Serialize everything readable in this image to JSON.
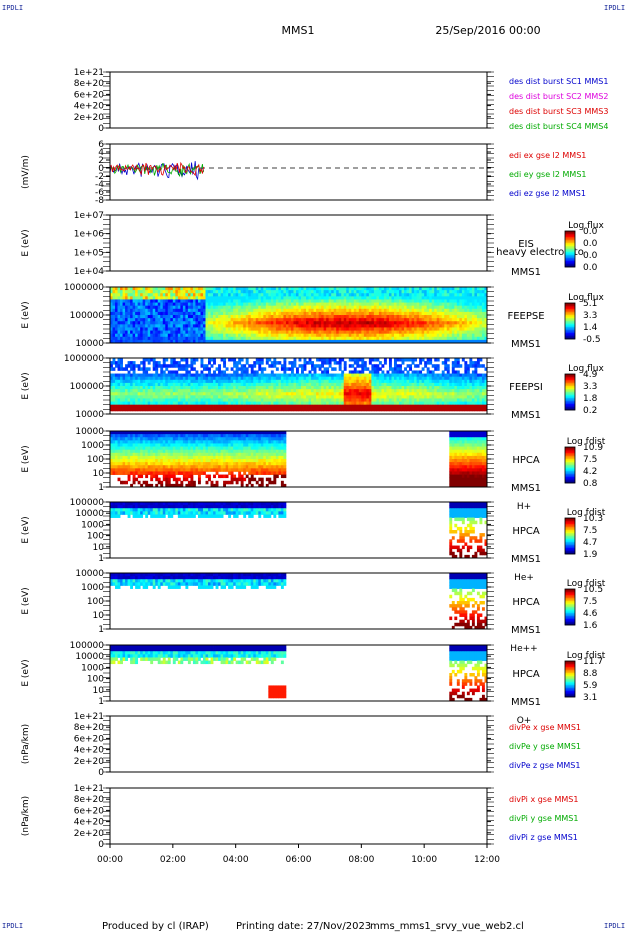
{
  "header": {
    "corner_tl": "IPDLI",
    "corner_tr": "IPDLI",
    "corner_bl": "IPDLI",
    "corner_br": "IPDLI",
    "spacecraft": "MMS1",
    "datetime": "25/Sep/2016 00:00"
  },
  "footer": {
    "produced_by": "Produced by cl (IRAP)",
    "printing_date": "Printing date: 27/Nov/2023",
    "filename": "mms_mms1_srvy_vue_web2.cl"
  },
  "chart_data": {
    "type": "heatmap",
    "x_axis": {
      "ticks": [
        "00:00",
        "02:00",
        "04:00",
        "06:00",
        "08:00",
        "10:00",
        "12:00"
      ],
      "range_hours": [
        0,
        12
      ]
    },
    "panels": [
      {
        "id": "des-dist",
        "kind": "line",
        "ylabel": "",
        "yticks": [
          "1e+21",
          "8e+20",
          "6e+20",
          "4e+20",
          "2e+20",
          "0"
        ],
        "zero_dashed": true,
        "legend": [
          {
            "text": "des dist burst SC1 MMS1",
            "color": "#0000cc"
          },
          {
            "text": "des dist burst SC2 MMS2",
            "color": "#dd00dd"
          },
          {
            "text": "des dist burst SC3 MMS3",
            "color": "#dd0000"
          },
          {
            "text": "des dist burst SC4 MMS4",
            "color": "#00aa00"
          }
        ]
      },
      {
        "id": "edi",
        "kind": "line",
        "ylabel": "(mV/m)",
        "yticks": [
          "6",
          "4",
          "2",
          "0",
          "-2",
          "-4",
          "-6",
          "-8"
        ],
        "zero_dashed": true,
        "data_end_hour": 3.0,
        "legend": [
          {
            "text": "edi ex gse l2 MMS1",
            "color": "#dd0000"
          },
          {
            "text": "edi ey gse l2 MMS1",
            "color": "#00aa00"
          },
          {
            "text": "edi ez gse l2 MMS1",
            "color": "#0000cc"
          }
        ]
      },
      {
        "id": "eis",
        "kind": "spectrogram",
        "ylabel": "E (eV)",
        "yticks": [
          "1e+07",
          "1e+06",
          "1e+05",
          "1e+04"
        ],
        "instrument": "EIS",
        "subtitle": "heavy electron to",
        "sc": "MMS1",
        "species": "",
        "colorbar": {
          "title": "Log flux",
          "ticks": [
            "0.0",
            "0.0",
            "0.0",
            "0.0"
          ]
        },
        "segments": []
      },
      {
        "id": "feeps-e",
        "kind": "spectrogram",
        "ylabel": "E (eV)",
        "yticks": [
          "1000000",
          "100000",
          "10000"
        ],
        "instrument": "FEEPSE",
        "subtitle": "",
        "sc": "MMS1",
        "species": "",
        "colorbar": {
          "title": "Log flux",
          "ticks": [
            "5.1",
            "3.3",
            "1.4",
            "-0.5"
          ]
        },
        "segments": [
          {
            "start": 0.0,
            "end": 3.1,
            "profile": "feepse_early"
          },
          {
            "start": 3.1,
            "end": 12.0,
            "profile": "feepse_main"
          }
        ]
      },
      {
        "id": "feeps-i",
        "kind": "spectrogram",
        "ylabel": "E (eV)",
        "yticks": [
          "1000000",
          "100000",
          "10000"
        ],
        "instrument": "FEEPSI",
        "subtitle": "",
        "sc": "MMS1",
        "species": "",
        "colorbar": {
          "title": "Log flux",
          "ticks": [
            "4.9",
            "3.3",
            "1.8",
            "0.2"
          ]
        },
        "segments": [
          {
            "start": 0.0,
            "end": 12.0,
            "profile": "feepsi"
          }
        ]
      },
      {
        "id": "hpca-h",
        "kind": "spectrogram",
        "ylabel": "E (eV)",
        "yticks": [
          "10000",
          "1000",
          "100",
          "10",
          "1"
        ],
        "instrument": "HPCA",
        "subtitle": "",
        "sc": "MMS1",
        "species": "H+",
        "colorbar": {
          "title": "Log fdist",
          "ticks": [
            "10.9",
            "7.5",
            "4.2",
            "0.8"
          ]
        },
        "segments": [
          {
            "start": 0.0,
            "end": 5.6,
            "profile": "hpca_h"
          },
          {
            "start": 10.8,
            "end": 12.0,
            "profile": "hpca_h_late"
          }
        ]
      },
      {
        "id": "hpca-he",
        "kind": "spectrogram",
        "ylabel": "E (eV)",
        "yticks": [
          "100000",
          "10000",
          "1000",
          "100",
          "10",
          "1"
        ],
        "instrument": "HPCA",
        "subtitle": "",
        "sc": "MMS1",
        "species": "He+",
        "colorbar": {
          "title": "Log fdist",
          "ticks": [
            "10.3",
            "7.5",
            "4.7",
            "1.9"
          ]
        },
        "segments": [
          {
            "start": 0.0,
            "end": 5.6,
            "profile": "hpca_top"
          },
          {
            "start": 10.8,
            "end": 12.0,
            "profile": "hpca_late"
          }
        ]
      },
      {
        "id": "hpca-hepp",
        "kind": "spectrogram",
        "ylabel": "E (eV)",
        "yticks": [
          "10000",
          "1000",
          "100",
          "10",
          "1"
        ],
        "instrument": "HPCA",
        "subtitle": "",
        "sc": "MMS1",
        "species": "He++",
        "colorbar": {
          "title": "Log fdist",
          "ticks": [
            "10.5",
            "7.5",
            "4.6",
            "1.6"
          ]
        },
        "segments": [
          {
            "start": 0.0,
            "end": 5.6,
            "profile": "hpca_top"
          },
          {
            "start": 10.8,
            "end": 12.0,
            "profile": "hpca_late"
          }
        ]
      },
      {
        "id": "hpca-o",
        "kind": "spectrogram",
        "ylabel": "E (eV)",
        "yticks": [
          "100000",
          "10000",
          "1000",
          "100",
          "10",
          "1"
        ],
        "instrument": "HPCA",
        "subtitle": "",
        "sc": "MMS1",
        "species": "O+",
        "colorbar": {
          "title": "Log fdist",
          "ticks": [
            "11.7",
            "8.8",
            "5.9",
            "3.1"
          ]
        },
        "segments": [
          {
            "start": 0.0,
            "end": 5.6,
            "profile": "hpca_o"
          },
          {
            "start": 10.8,
            "end": 12.0,
            "profile": "hpca_late"
          }
        ]
      },
      {
        "id": "divpe",
        "kind": "line",
        "ylabel": "(nPa/km)",
        "yticks": [
          "1e+21",
          "8e+20",
          "6e+20",
          "4e+20",
          "2e+20",
          "0"
        ],
        "zero_dashed": true,
        "legend": [
          {
            "text": "divPe x gse MMS1",
            "color": "#dd0000"
          },
          {
            "text": "divPe y gse MMS1",
            "color": "#00aa00"
          },
          {
            "text": "divPe z gse MMS1",
            "color": "#0000cc"
          }
        ]
      },
      {
        "id": "divpi",
        "kind": "line",
        "ylabel": "(nPa/km)",
        "yticks": [
          "1e+21",
          "8e+20",
          "6e+20",
          "4e+20",
          "2e+20",
          "0"
        ],
        "zero_dashed": true,
        "legend": [
          {
            "text": "divPi x gse MMS1",
            "color": "#dd0000"
          },
          {
            "text": "divPi y gse MMS1",
            "color": "#00aa00"
          },
          {
            "text": "divPi z gse MMS1",
            "color": "#0000cc"
          }
        ]
      }
    ]
  }
}
